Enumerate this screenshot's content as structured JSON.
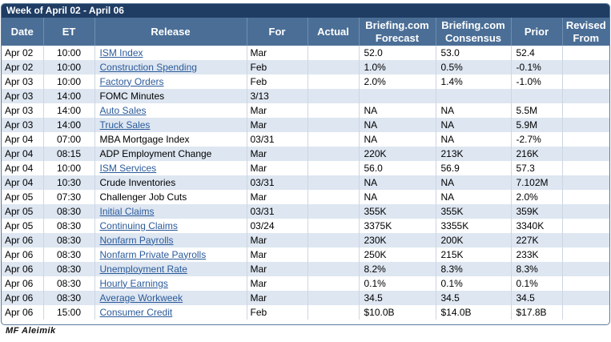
{
  "title": "Week of April 02 - April 06",
  "headers": {
    "date": "Date",
    "et": "ET",
    "release": "Release",
    "for": "For",
    "actual": "Actual",
    "forecast": [
      "Briefing.com",
      "Forecast"
    ],
    "consensus": [
      "Briefing.com",
      "Consensus"
    ],
    "prior": "Prior",
    "revised": [
      "Revised",
      "From"
    ]
  },
  "rows": [
    {
      "date": "Apr 02",
      "et": "10:00",
      "release": "ISM Index",
      "link": true,
      "for": "Mar",
      "actual": "",
      "forecast": "52.0",
      "consensus": "53.0",
      "prior": "52.4",
      "revised": ""
    },
    {
      "date": "Apr 02",
      "et": "10:00",
      "release": "Construction Spending",
      "link": true,
      "for": "Feb",
      "actual": "",
      "forecast": "1.0%",
      "consensus": "0.5%",
      "prior": "-0.1%",
      "revised": ""
    },
    {
      "date": "Apr 03",
      "et": "10:00",
      "release": "Factory Orders",
      "link": true,
      "for": "Feb",
      "actual": "",
      "forecast": "2.0%",
      "consensus": "1.4%",
      "prior": "-1.0%",
      "revised": ""
    },
    {
      "date": "Apr 03",
      "et": "14:00",
      "release": "FOMC Minutes",
      "link": false,
      "for": "3/13",
      "actual": "",
      "forecast": "",
      "consensus": "",
      "prior": "",
      "revised": ""
    },
    {
      "date": "Apr 03",
      "et": "14:00",
      "release": "Auto Sales",
      "link": true,
      "for": "Mar",
      "actual": "",
      "forecast": "NA",
      "consensus": "NA",
      "prior": "5.5M",
      "revised": ""
    },
    {
      "date": "Apr 03",
      "et": "14:00",
      "release": "Truck Sales",
      "link": true,
      "for": "Mar",
      "actual": "",
      "forecast": "NA",
      "consensus": "NA",
      "prior": "5.9M",
      "revised": ""
    },
    {
      "date": "Apr 04",
      "et": "07:00",
      "release": "MBA Mortgage Index",
      "link": false,
      "for": "03/31",
      "actual": "",
      "forecast": "NA",
      "consensus": "NA",
      "prior": "-2.7%",
      "revised": ""
    },
    {
      "date": "Apr 04",
      "et": "08:15",
      "release": "ADP Employment Change",
      "link": false,
      "for": "Mar",
      "actual": "",
      "forecast": "220K",
      "consensus": "213K",
      "prior": "216K",
      "revised": ""
    },
    {
      "date": "Apr 04",
      "et": "10:00",
      "release": "ISM Services",
      "link": true,
      "for": "Mar",
      "actual": "",
      "forecast": "56.0",
      "consensus": "56.9",
      "prior": "57.3",
      "revised": ""
    },
    {
      "date": "Apr 04",
      "et": "10:30",
      "release": "Crude Inventories",
      "link": false,
      "for": "03/31",
      "actual": "",
      "forecast": "NA",
      "consensus": "NA",
      "prior": "7.102M",
      "revised": ""
    },
    {
      "date": "Apr 05",
      "et": "07:30",
      "release": "Challenger Job Cuts",
      "link": false,
      "for": "Mar",
      "actual": "",
      "forecast": "NA",
      "consensus": "NA",
      "prior": "2.0%",
      "revised": ""
    },
    {
      "date": "Apr 05",
      "et": "08:30",
      "release": "Initial Claims",
      "link": true,
      "for": "03/31",
      "actual": "",
      "forecast": "355K",
      "consensus": "355K",
      "prior": "359K",
      "revised": ""
    },
    {
      "date": "Apr 05",
      "et": "08:30",
      "release": "Continuing Claims",
      "link": true,
      "for": "03/24",
      "actual": "",
      "forecast": "3375K",
      "consensus": "3355K",
      "prior": "3340K",
      "revised": ""
    },
    {
      "date": "Apr 06",
      "et": "08:30",
      "release": "Nonfarm Payrolls",
      "link": true,
      "for": "Mar",
      "actual": "",
      "forecast": "230K",
      "consensus": "200K",
      "prior": "227K",
      "revised": ""
    },
    {
      "date": "Apr 06",
      "et": "08:30",
      "release": "Nonfarm Private Payrolls",
      "link": true,
      "for": "Mar",
      "actual": "",
      "forecast": "250K",
      "consensus": "215K",
      "prior": "233K",
      "revised": ""
    },
    {
      "date": "Apr 06",
      "et": "08:30",
      "release": "Unemployment Rate",
      "link": true,
      "for": "Mar",
      "actual": "",
      "forecast": "8.2%",
      "consensus": "8.3%",
      "prior": "8.3%",
      "revised": ""
    },
    {
      "date": "Apr 06",
      "et": "08:30",
      "release": "Hourly Earnings",
      "link": true,
      "for": "Mar",
      "actual": "",
      "forecast": "0.1%",
      "consensus": "0.1%",
      "prior": "0.1%",
      "revised": ""
    },
    {
      "date": "Apr 06",
      "et": "08:30",
      "release": "Average Workweek",
      "link": true,
      "for": "Mar",
      "actual": "",
      "forecast": "34.5",
      "consensus": "34.5",
      "prior": "34.5",
      "revised": ""
    },
    {
      "date": "Apr 06",
      "et": "15:00",
      "release": "Consumer Credit",
      "link": true,
      "for": "Feb",
      "actual": "",
      "forecast": "$10.0B",
      "consensus": "$14.0B",
      "prior": "$17.8B",
      "revised": ""
    }
  ],
  "footer": "MF Aleimik",
  "colors": {
    "title_bar": "#1f3c63",
    "header_bg": "#4b6e96",
    "row_shade": "#dde6f1",
    "link": "#2b5a9a"
  }
}
